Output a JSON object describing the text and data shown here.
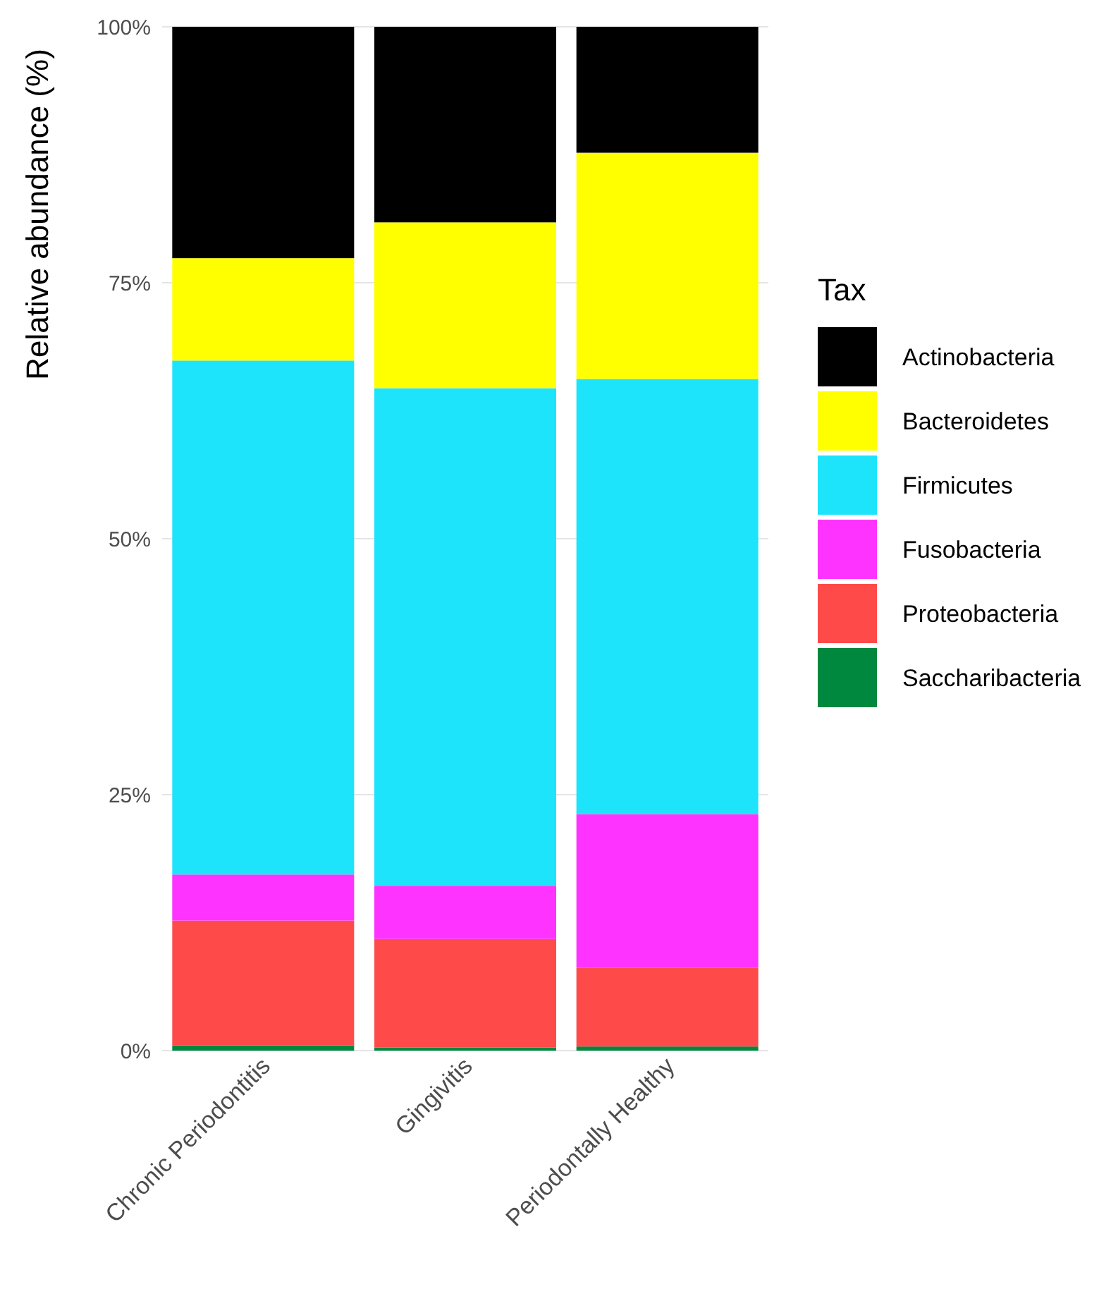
{
  "chart_data": {
    "type": "bar",
    "stacked": true,
    "ylabel": "Relative abundance (%)",
    "legend_title": "Tax",
    "legend": "right",
    "grid": "y",
    "categories": [
      "Chronic Periodontitis",
      "Gingivitis",
      "Periodontally Healthy"
    ],
    "ylim": [
      0,
      100
    ],
    "yticks": [
      {
        "value": 0,
        "label": "0%"
      },
      {
        "value": 25,
        "label": "25%"
      },
      {
        "value": 50,
        "label": "50%"
      },
      {
        "value": 75,
        "label": "75%"
      },
      {
        "value": 100,
        "label": "100%"
      }
    ],
    "series": [
      {
        "name": "Saccharibacteria",
        "color": "#00883f",
        "values": [
          0.5,
          0.3,
          0.4
        ]
      },
      {
        "name": "Proteobacteria",
        "color": "#ff4a4a",
        "values": [
          12.2,
          10.6,
          7.7
        ]
      },
      {
        "name": "Fusobacteria",
        "color": "#ff33ff",
        "values": [
          4.5,
          5.2,
          15
        ]
      },
      {
        "name": "Firmicutes",
        "color": "#1de4fb",
        "values": [
          50.2,
          48.6,
          42.5
        ]
      },
      {
        "name": "Bacteroidetes",
        "color": "#ffff00",
        "values": [
          10,
          16.2,
          22.1
        ]
      },
      {
        "name": "Actinobacteria",
        "color": "#000000",
        "values": [
          22.6,
          19.1,
          12.3
        ]
      }
    ]
  }
}
